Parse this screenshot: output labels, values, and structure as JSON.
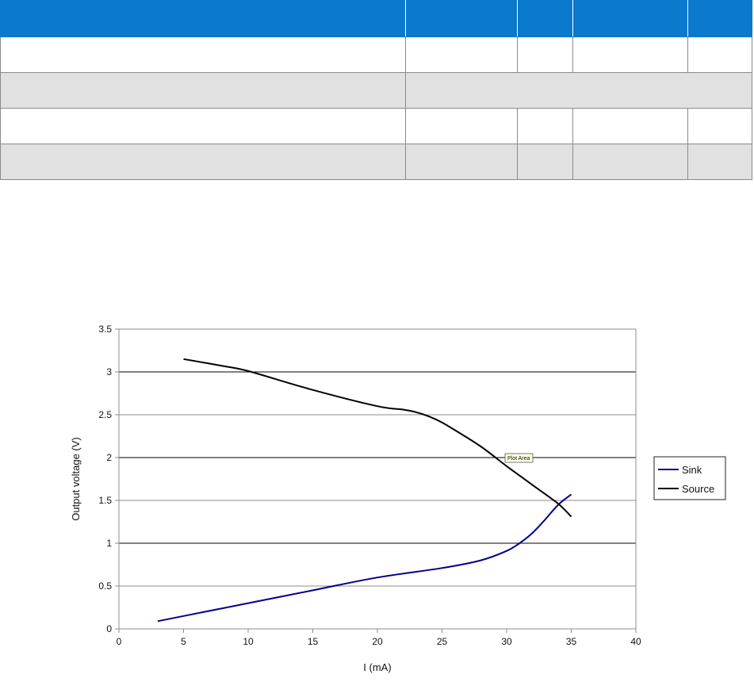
{
  "table": {
    "colors": {
      "header": "#0b79cc",
      "shaded_row": "#e1e1e1",
      "plain_row": "#ffffff",
      "border": "#8a8a8a"
    },
    "header_cells": [
      "",
      "",
      "",
      "",
      ""
    ],
    "rows": [
      {
        "style": "plain",
        "cells": [
          "",
          "",
          "",
          "",
          ""
        ]
      },
      {
        "style": "shaded",
        "cells": [
          "",
          ""
        ],
        "merged_right": true
      },
      {
        "style": "plain",
        "cells": [
          "",
          "",
          "",
          "",
          ""
        ]
      },
      {
        "style": "shaded",
        "cells": [
          "",
          "",
          "",
          "",
          ""
        ]
      }
    ]
  },
  "chart_data": {
    "type": "line",
    "title": "",
    "xlabel": "I (mA)",
    "ylabel": "Output voltage (V)",
    "xlim": [
      0,
      40
    ],
    "ylim": [
      0,
      3.5
    ],
    "x_ticks": [
      0,
      5,
      10,
      15,
      20,
      25,
      30,
      35,
      40
    ],
    "x_tick_labels": [
      "0",
      "5",
      "10",
      "15",
      "20",
      "25",
      "30",
      "35",
      "40"
    ],
    "y_ticks": [
      0,
      0.5,
      1,
      1.5,
      2,
      2.5,
      3,
      3.5
    ],
    "y_tick_labels": [
      "0",
      "0.5",
      "1",
      "1.5",
      "2",
      "2.5",
      "3",
      "3.5"
    ],
    "grid": "horizontal",
    "legend_position": "right",
    "tooltip": "Plot Area",
    "series": [
      {
        "name": "Sink",
        "color": "#00008b",
        "x": [
          3,
          5,
          10,
          15,
          20,
          25,
          28,
          30,
          31,
          32,
          33,
          34,
          35
        ],
        "values": [
          0.09,
          0.15,
          0.3,
          0.45,
          0.6,
          0.71,
          0.8,
          0.91,
          1.0,
          1.12,
          1.28,
          1.45,
          1.57
        ]
      },
      {
        "name": "Source",
        "color": "#000000",
        "x": [
          5,
          8,
          10,
          15,
          20,
          22,
          23,
          24,
          25,
          26,
          28,
          30,
          32,
          34,
          35
        ],
        "values": [
          3.15,
          3.07,
          3.01,
          2.79,
          2.6,
          2.56,
          2.53,
          2.48,
          2.41,
          2.32,
          2.13,
          1.9,
          1.68,
          1.46,
          1.31
        ]
      }
    ]
  }
}
